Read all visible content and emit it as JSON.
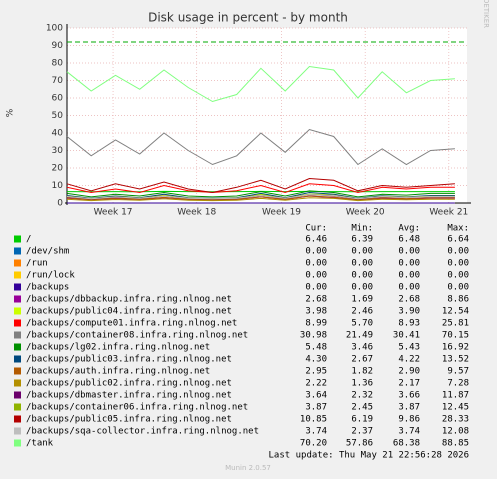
{
  "chart_data": {
    "type": "line",
    "title": "Disk usage in percent - by month",
    "y_label": "%",
    "side_text": "RRDTOOL / TOBI OETIKER",
    "x": [
      0,
      2,
      4,
      6,
      8,
      10,
      12,
      14,
      16,
      18,
      20,
      22,
      24,
      26,
      28,
      30,
      32
    ],
    "xlim": [
      0,
      33
    ],
    "xticks": [
      {
        "value": 3.8,
        "label": "Week 17"
      },
      {
        "value": 10.7,
        "label": "Week 18"
      },
      {
        "value": 17.7,
        "label": "Week 19"
      },
      {
        "value": 24.6,
        "label": "Week 20"
      },
      {
        "value": 31.5,
        "label": "Week 21"
      }
    ],
    "ylim": [
      0,
      100
    ],
    "yticks": [
      0,
      10,
      20,
      30,
      40,
      50,
      60,
      70,
      80,
      90,
      100
    ],
    "grid": true,
    "reference_line": {
      "value": 92,
      "color": "#00aa00"
    },
    "legend_headers": [
      "Cur:",
      "Min:",
      "Avg:",
      "Max:"
    ],
    "series": [
      {
        "name": "/",
        "color": "#00cc00",
        "stats": [
          "6.46",
          "6.39",
          "6.48",
          "6.64"
        ],
        "values": [
          6.5,
          6.4,
          6.5,
          6.4,
          6.6,
          6.5,
          6.4,
          6.5,
          6.6,
          6.5,
          6.6,
          6.5,
          6.4,
          6.5,
          6.5,
          6.5,
          6.5
        ]
      },
      {
        "name": "/dev/shm",
        "color": "#0066b3",
        "stats": [
          "0.00",
          "0.00",
          "0.00",
          "0.00"
        ],
        "values": [
          0,
          0,
          0,
          0,
          0,
          0,
          0,
          0,
          0,
          0,
          0,
          0,
          0,
          0,
          0,
          0,
          0
        ]
      },
      {
        "name": "/run",
        "color": "#ff8000",
        "stats": [
          "0.00",
          "0.00",
          "0.00",
          "0.00"
        ],
        "values": [
          0,
          0,
          0,
          0,
          0,
          0,
          0,
          0,
          0,
          0,
          0,
          0,
          0,
          0,
          0,
          0,
          0
        ]
      },
      {
        "name": "/run/lock",
        "color": "#ffcc00",
        "stats": [
          "0.00",
          "0.00",
          "0.00",
          "0.00"
        ],
        "values": [
          0,
          0,
          0,
          0,
          0,
          0,
          0,
          0,
          0,
          0,
          0,
          0,
          0,
          0,
          0,
          0,
          0
        ]
      },
      {
        "name": "/backups",
        "color": "#330099",
        "stats": [
          "0.00",
          "0.00",
          "0.00",
          "0.00"
        ],
        "values": [
          0,
          0,
          0,
          0,
          0,
          0,
          0,
          0,
          0,
          0,
          0,
          0,
          0,
          0,
          0,
          0,
          0
        ]
      },
      {
        "name": "/backups/dbbackup.infra.ring.nlnog.net",
        "color": "#990099",
        "stats": [
          "2.68",
          "1.69",
          "2.68",
          "8.86"
        ],
        "values": [
          2.7,
          1.8,
          2.5,
          2,
          3,
          2,
          1.7,
          2,
          3.5,
          2,
          4,
          3,
          1.8,
          2.6,
          2.3,
          2.7,
          2.7
        ]
      },
      {
        "name": "/backups/public04.infra.ring.nlnog.net",
        "color": "#ccff00",
        "stats": [
          "3.98",
          "2.46",
          "3.90",
          "12.54"
        ],
        "values": [
          4,
          2.5,
          4,
          3,
          4.5,
          3,
          2.5,
          3,
          5,
          3,
          5,
          5,
          2.5,
          4,
          3.5,
          4,
          4
        ]
      },
      {
        "name": "/backups/compute01.infra.ring.nlnog.net",
        "color": "#ff0000",
        "stats": [
          "8.99",
          "5.70",
          "8.93",
          "25.81"
        ],
        "values": [
          9,
          6,
          8,
          6,
          10,
          7,
          6,
          7,
          10,
          6,
          11,
          10,
          6,
          9,
          8,
          9,
          9
        ]
      },
      {
        "name": "/backups/container08.infra.ring.nlnog.net",
        "color": "#808080",
        "stats": [
          "30.98",
          "21.49",
          "30.41",
          "70.15"
        ],
        "values": [
          38,
          27,
          36,
          28,
          40,
          30,
          22,
          27,
          40,
          29,
          42,
          38,
          22,
          31,
          22,
          30,
          31
        ]
      },
      {
        "name": "/backups/lg02.infra.ring.nlnog.net",
        "color": "#008f00",
        "stats": [
          "5.48",
          "3.46",
          "5.43",
          "16.92"
        ],
        "values": [
          5.5,
          3.5,
          5,
          4,
          6,
          4,
          3.5,
          4,
          6.5,
          4,
          6.9,
          6,
          3.5,
          5,
          4.5,
          5.5,
          5.5
        ]
      },
      {
        "name": "/backups/public03.infra.ring.nlnog.net",
        "color": "#00487d",
        "stats": [
          "4.30",
          "2.67",
          "4.22",
          "13.52"
        ],
        "values": [
          4.3,
          2.7,
          4,
          3,
          5,
          3,
          2.7,
          3,
          5.5,
          3,
          6,
          5,
          2.7,
          4.2,
          3.5,
          4.3,
          4.3
        ]
      },
      {
        "name": "/backups/auth.infra.ring.nlnog.net",
        "color": "#b35a00",
        "stats": [
          "2.95",
          "1.82",
          "2.90",
          "9.57"
        ],
        "values": [
          3,
          1.9,
          2.8,
          2.2,
          3.2,
          2.2,
          1.9,
          2.2,
          3.5,
          2.2,
          4,
          3.4,
          1.9,
          2.9,
          2.5,
          2.9,
          2.95
        ]
      },
      {
        "name": "/backups/public02.infra.ring.nlnog.net",
        "color": "#b38f00",
        "stats": [
          "2.22",
          "1.36",
          "2.17",
          "7.28"
        ],
        "values": [
          2.2,
          1.4,
          2,
          1.6,
          2.4,
          1.6,
          1.4,
          1.6,
          2.6,
          1.6,
          3,
          2.6,
          1.4,
          2.2,
          1.9,
          2.2,
          2.2
        ]
      },
      {
        "name": "/backups/dbmaster.infra.ring.nlnog.net",
        "color": "#6b006b",
        "stats": [
          "3.64",
          "2.32",
          "3.66",
          "11.87"
        ],
        "values": [
          3.6,
          2.3,
          3.4,
          2.6,
          4,
          2.6,
          2.3,
          2.6,
          4.3,
          2.6,
          4.8,
          4.2,
          2.3,
          3.6,
          3.2,
          3.6,
          3.6
        ]
      },
      {
        "name": "/backups/container06.infra.ring.nlnog.net",
        "color": "#8fb300",
        "stats": [
          "3.87",
          "2.45",
          "3.87",
          "12.45"
        ],
        "values": [
          3.9,
          2.5,
          3.6,
          2.8,
          4.2,
          2.8,
          2.5,
          2.8,
          4.5,
          2.8,
          5,
          4.4,
          2.5,
          3.8,
          3.3,
          3.9,
          3.9
        ]
      },
      {
        "name": "/backups/public05.infra.ring.nlnog.net",
        "color": "#b30000",
        "stats": [
          "10.85",
          "6.19",
          "9.86",
          "28.33"
        ],
        "values": [
          11,
          7,
          11,
          8,
          12,
          8,
          6,
          9,
          13,
          8,
          14,
          13,
          7,
          10,
          9,
          10,
          11
        ]
      },
      {
        "name": "/backups/sqa-collector.infra.ring.nlnog.net",
        "color": "#bebebe",
        "stats": [
          "3.74",
          "2.37",
          "3.74",
          "12.08"
        ],
        "values": [
          3.7,
          2.4,
          3.5,
          2.7,
          4,
          2.7,
          2.4,
          2.7,
          4.3,
          2.7,
          4.8,
          4.3,
          2.4,
          3.7,
          3.2,
          3.7,
          3.7
        ]
      },
      {
        "name": "/tank",
        "color": "#80ff80",
        "stats": [
          "70.20",
          "57.86",
          "68.38",
          "88.85"
        ],
        "values": [
          75,
          64,
          73,
          65,
          76,
          66,
          58,
          62,
          77,
          64,
          78,
          76,
          60,
          75,
          63,
          70,
          71
        ]
      }
    ],
    "last_update": "Last update: Thu May 21 22:56:28 2026",
    "footer": "Munin 2.0.57"
  }
}
